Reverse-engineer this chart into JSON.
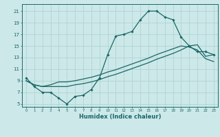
{
  "xlabel": "Humidex (Indice chaleur)",
  "bg_color": "#cce8e8",
  "grid_color": "#b0d4d4",
  "line_color": "#1a6666",
  "xlim": [
    -0.5,
    23.5
  ],
  "ylim": [
    4.5,
    22.2
  ],
  "xticks": [
    0,
    1,
    2,
    3,
    4,
    5,
    6,
    7,
    8,
    9,
    10,
    11,
    12,
    13,
    14,
    15,
    16,
    17,
    18,
    19,
    20,
    21,
    22,
    23
  ],
  "yticks": [
    5,
    7,
    9,
    11,
    13,
    15,
    17,
    19,
    21
  ],
  "line1_x": [
    0,
    1,
    2,
    3,
    4,
    5,
    6,
    7,
    8,
    9,
    10,
    11,
    12,
    13,
    14,
    15,
    16,
    17,
    18,
    19,
    20,
    21,
    22,
    23
  ],
  "line1_y": [
    9.5,
    8.0,
    7.0,
    7.0,
    6.0,
    5.0,
    6.3,
    6.5,
    7.5,
    9.5,
    13.5,
    16.7,
    17.0,
    17.5,
    19.5,
    21.0,
    21.0,
    20.0,
    19.5,
    16.5,
    15.0,
    14.0,
    14.0,
    13.5
  ],
  "line2_x": [
    0,
    1,
    2,
    3,
    4,
    5,
    6,
    7,
    8,
    9,
    10,
    11,
    12,
    13,
    14,
    15,
    16,
    17,
    18,
    19,
    20,
    21,
    22,
    23
  ],
  "line2_y": [
    9.0,
    8.3,
    8.0,
    8.0,
    8.0,
    8.0,
    8.3,
    8.5,
    8.8,
    9.2,
    9.7,
    10.1,
    10.6,
    11.1,
    11.6,
    12.1,
    12.7,
    13.2,
    13.7,
    14.3,
    15.0,
    15.2,
    13.2,
    13.5
  ],
  "line3_x": [
    0,
    1,
    2,
    3,
    4,
    5,
    6,
    7,
    8,
    9,
    10,
    11,
    12,
    13,
    14,
    15,
    16,
    17,
    18,
    19,
    20,
    21,
    22,
    23
  ],
  "line3_y": [
    9.0,
    8.3,
    8.0,
    8.3,
    8.8,
    8.8,
    9.0,
    9.3,
    9.6,
    10.0,
    10.5,
    10.9,
    11.4,
    11.9,
    12.4,
    12.9,
    13.5,
    14.0,
    14.5,
    15.0,
    14.8,
    14.3,
    12.8,
    12.3
  ]
}
